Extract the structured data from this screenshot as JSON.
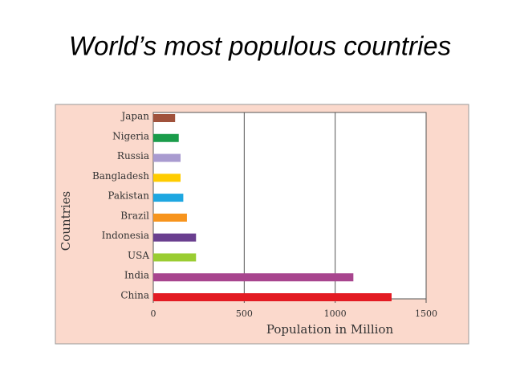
{
  "chart_data": {
    "type": "barh",
    "title": "World’s most populous countries",
    "x_label": "Population in Million",
    "y_label": "Countries",
    "categories": [
      "Japan",
      "Nigeria",
      "Russia",
      "Bangladesh",
      "Pakistan",
      "Brazil",
      "Indonesia",
      "USA",
      "India",
      "China"
    ],
    "values": [
      120,
      140,
      150,
      150,
      165,
      185,
      235,
      235,
      1100,
      1310
    ],
    "colors": [
      "#a0523c",
      "#1a9c4a",
      "#a99bd0",
      "#ffcc00",
      "#1ea7e1",
      "#f7941d",
      "#6a3f8f",
      "#9acd32",
      "#a8458e",
      "#e31b23"
    ],
    "xlim": [
      0,
      1500
    ],
    "xticks": [
      0,
      500,
      1000,
      1500
    ],
    "grid": true
  }
}
